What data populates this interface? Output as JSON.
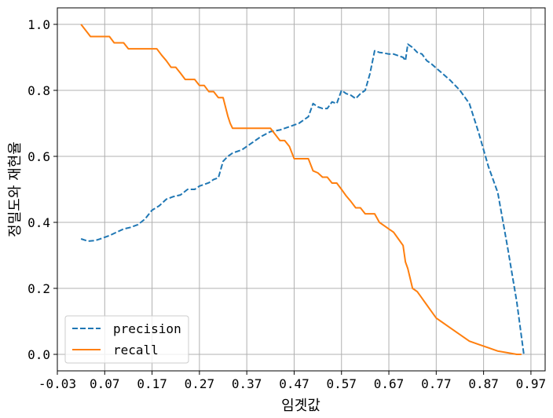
{
  "chart_data": {
    "type": "line",
    "xlabel": "임곗값",
    "ylabel": "정밀도와 재현율",
    "xlim": [
      -0.03,
      1.0
    ],
    "ylim": [
      -0.05,
      1.05
    ],
    "xticks": [
      -0.03,
      0.07,
      0.17,
      0.27,
      0.37,
      0.47,
      0.57,
      0.67,
      0.77,
      0.87,
      0.97
    ],
    "xtick_labels": [
      "-0.03",
      "0.07",
      "0.17",
      "0.27",
      "0.37",
      "0.47",
      "0.57",
      "0.67",
      "0.77",
      "0.87",
      "0.97"
    ],
    "yticks": [
      0.0,
      0.2,
      0.4,
      0.6,
      0.8,
      1.0
    ],
    "ytick_labels": [
      "0.0",
      "0.2",
      "0.4",
      "0.6",
      "0.8",
      "1.0"
    ],
    "grid": true,
    "legend": "lower-left",
    "colors": {
      "precision": "#1f77b4",
      "recall": "#ff7f0e",
      "grid": "#b0b0b0"
    },
    "series": [
      {
        "name": "precision",
        "style": "dashed",
        "color": "#1f77b4",
        "x": [
          0.02,
          0.035,
          0.05,
          0.065,
          0.08,
          0.095,
          0.11,
          0.125,
          0.14,
          0.155,
          0.17,
          0.185,
          0.2,
          0.215,
          0.23,
          0.245,
          0.26,
          0.27,
          0.28,
          0.29,
          0.3,
          0.31,
          0.32,
          0.33,
          0.34,
          0.36,
          0.38,
          0.4,
          0.42,
          0.44,
          0.45,
          0.46,
          0.47,
          0.48,
          0.49,
          0.5,
          0.51,
          0.52,
          0.53,
          0.54,
          0.55,
          0.56,
          0.57,
          0.58,
          0.59,
          0.6,
          0.61,
          0.62,
          0.63,
          0.64,
          0.65,
          0.66,
          0.67,
          0.68,
          0.69,
          0.7,
          0.705,
          0.71,
          0.72,
          0.73,
          0.74,
          0.75,
          0.76,
          0.78,
          0.8,
          0.82,
          0.84,
          0.86,
          0.88,
          0.9,
          0.92,
          0.94,
          0.955
        ],
        "y": [
          0.35,
          0.343,
          0.345,
          0.352,
          0.36,
          0.37,
          0.38,
          0.385,
          0.393,
          0.41,
          0.437,
          0.45,
          0.47,
          0.478,
          0.483,
          0.5,
          0.5,
          0.51,
          0.515,
          0.52,
          0.53,
          0.535,
          0.585,
          0.6,
          0.61,
          0.62,
          0.64,
          0.66,
          0.675,
          0.68,
          0.685,
          0.69,
          0.695,
          0.7,
          0.71,
          0.72,
          0.76,
          0.75,
          0.745,
          0.745,
          0.765,
          0.76,
          0.8,
          0.79,
          0.785,
          0.775,
          0.79,
          0.8,
          0.85,
          0.92,
          0.915,
          0.913,
          0.91,
          0.91,
          0.905,
          0.9,
          0.89,
          0.94,
          0.93,
          0.915,
          0.91,
          0.89,
          0.88,
          0.855,
          0.83,
          0.8,
          0.76,
          0.67,
          0.57,
          0.49,
          0.33,
          0.16,
          0.0
        ]
      },
      {
        "name": "recall",
        "style": "solid",
        "color": "#ff7f0e",
        "x": [
          0.02,
          0.04,
          0.06,
          0.08,
          0.09,
          0.11,
          0.12,
          0.14,
          0.16,
          0.18,
          0.19,
          0.2,
          0.21,
          0.22,
          0.23,
          0.24,
          0.25,
          0.26,
          0.27,
          0.28,
          0.29,
          0.3,
          0.31,
          0.32,
          0.33,
          0.335,
          0.34,
          0.345,
          0.36,
          0.38,
          0.4,
          0.42,
          0.44,
          0.45,
          0.46,
          0.47,
          0.48,
          0.49,
          0.5,
          0.51,
          0.52,
          0.53,
          0.54,
          0.55,
          0.56,
          0.57,
          0.58,
          0.59,
          0.6,
          0.61,
          0.62,
          0.63,
          0.64,
          0.65,
          0.66,
          0.67,
          0.68,
          0.69,
          0.7,
          0.705,
          0.71,
          0.715,
          0.72,
          0.73,
          0.74,
          0.75,
          0.76,
          0.77,
          0.78,
          0.8,
          0.82,
          0.84,
          0.86,
          0.88,
          0.9,
          0.92,
          0.94,
          0.95
        ],
        "y": [
          1.0,
          0.963,
          0.963,
          0.963,
          0.944,
          0.944,
          0.926,
          0.926,
          0.926,
          0.926,
          0.907,
          0.89,
          0.87,
          0.87,
          0.852,
          0.833,
          0.833,
          0.833,
          0.815,
          0.815,
          0.796,
          0.796,
          0.778,
          0.778,
          0.722,
          0.7,
          0.685,
          0.685,
          0.685,
          0.685,
          0.685,
          0.685,
          0.648,
          0.648,
          0.63,
          0.593,
          0.593,
          0.593,
          0.593,
          0.556,
          0.55,
          0.537,
          0.537,
          0.519,
          0.519,
          0.5,
          0.48,
          0.463,
          0.444,
          0.444,
          0.426,
          0.426,
          0.426,
          0.4,
          0.39,
          0.38,
          0.37,
          0.35,
          0.33,
          0.28,
          0.26,
          0.23,
          0.2,
          0.19,
          0.17,
          0.15,
          0.13,
          0.11,
          0.1,
          0.08,
          0.06,
          0.04,
          0.03,
          0.02,
          0.01,
          0.005,
          0.0,
          0.0
        ]
      }
    ]
  }
}
